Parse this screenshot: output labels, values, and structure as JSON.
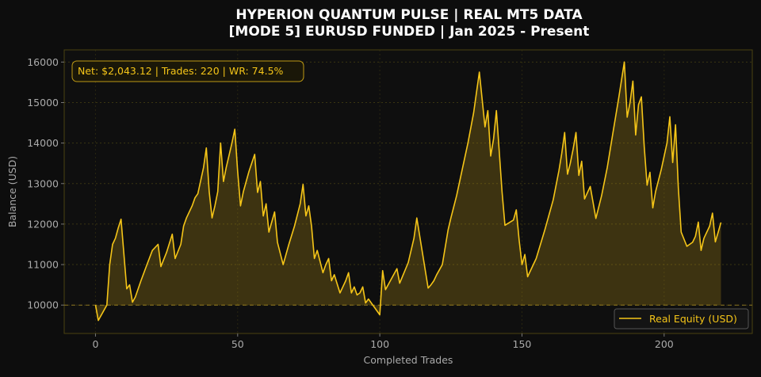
{
  "chart_data": {
    "type": "line",
    "title_line1": "HYPERION QUANTUM PULSE | REAL MT5 DATA",
    "title_line2": "[MODE 5] EURUSD FUNDED | Jan 2025 - Present",
    "xlabel": "Completed Trades",
    "ylabel": "Balance (USD)",
    "xlim": [
      -11,
      231
    ],
    "ylim": [
      9300,
      16300
    ],
    "xticks": [
      0,
      50,
      100,
      150,
      200
    ],
    "yticks": [
      10000,
      11000,
      12000,
      13000,
      14000,
      15000,
      16000
    ],
    "grid": true,
    "baseline": 10000,
    "legend_position": "bottom-right",
    "stats_text": "Net: $2,043.12 | Trades: 220 | WR: 74.5%",
    "colors": {
      "line": "#f5c518",
      "background": "#0d0d0d",
      "grid": "#3a3512",
      "frame": "#4a4210"
    },
    "series": [
      {
        "name": "Real Equity (USD)",
        "x": [
          0,
          1,
          4,
          5,
          6,
          7,
          8,
          9,
          11,
          12,
          13,
          14,
          16,
          18,
          20,
          22,
          23,
          25,
          27,
          28,
          30,
          31,
          32,
          34,
          35,
          36,
          38,
          39,
          40,
          41,
          42,
          43,
          44,
          45,
          46,
          48,
          49,
          50,
          51,
          52,
          54,
          56,
          57,
          58,
          59,
          60,
          61,
          63,
          64,
          66,
          68,
          70,
          72,
          73,
          74,
          75,
          76,
          77,
          78,
          80,
          81,
          82,
          83,
          84,
          86,
          87,
          88,
          89,
          90,
          91,
          92,
          93,
          94,
          95,
          96,
          100,
          101,
          102,
          106,
          107,
          110,
          112,
          113,
          117,
          118,
          119,
          120,
          122,
          124,
          125,
          127,
          129,
          131,
          133,
          135,
          137,
          138,
          139,
          140,
          141,
          143,
          144,
          147,
          148,
          149,
          150,
          151,
          152,
          155,
          158,
          161,
          163,
          164,
          165,
          166,
          167,
          168,
          169,
          170,
          171,
          172,
          174,
          176,
          178,
          180,
          182,
          184,
          186,
          187,
          188,
          189,
          190,
          191,
          192,
          193,
          194,
          195,
          196,
          197,
          199,
          201,
          202,
          203,
          204,
          205,
          206,
          208,
          210,
          211,
          212,
          213,
          214,
          216,
          217,
          218,
          219,
          220
        ],
        "values": [
          10000,
          9620,
          10000,
          11000,
          11500,
          11650,
          11900,
          12120,
          10400,
          10500,
          10070,
          10200,
          10600,
          10980,
          11350,
          11500,
          10950,
          11300,
          11750,
          11150,
          11500,
          11950,
          12150,
          12450,
          12650,
          12750,
          13400,
          13880,
          12800,
          12150,
          12450,
          12800,
          14000,
          13050,
          13400,
          14000,
          14340,
          13300,
          12450,
          12800,
          13300,
          13720,
          12780,
          13050,
          12200,
          12500,
          11800,
          12300,
          11550,
          11000,
          11500,
          11950,
          12500,
          12980,
          12200,
          12450,
          11950,
          11150,
          11350,
          10800,
          11000,
          11150,
          10600,
          10750,
          10300,
          10450,
          10600,
          10800,
          10300,
          10450,
          10250,
          10300,
          10450,
          10050,
          10150,
          9760,
          10850,
          10380,
          10900,
          10540,
          11050,
          11650,
          12150,
          10420,
          10500,
          10600,
          10750,
          11000,
          11850,
          12150,
          12700,
          13350,
          14000,
          14750,
          15750,
          14400,
          14800,
          13680,
          14100,
          14800,
          12780,
          11970,
          12100,
          12350,
          11600,
          11000,
          11250,
          10700,
          11150,
          11850,
          12600,
          13320,
          13750,
          14260,
          13230,
          13500,
          13850,
          14260,
          13200,
          13550,
          12620,
          12930,
          12140,
          12700,
          13400,
          14250,
          15100,
          16000,
          14640,
          15000,
          15530,
          14200,
          14950,
          15140,
          13910,
          12960,
          13280,
          12400,
          12800,
          13350,
          14000,
          14650,
          13520,
          14450,
          12900,
          11800,
          11450,
          11550,
          11700,
          12050,
          11350,
          11650,
          11950,
          12270,
          11560,
          11800,
          12040
        ]
      }
    ]
  }
}
